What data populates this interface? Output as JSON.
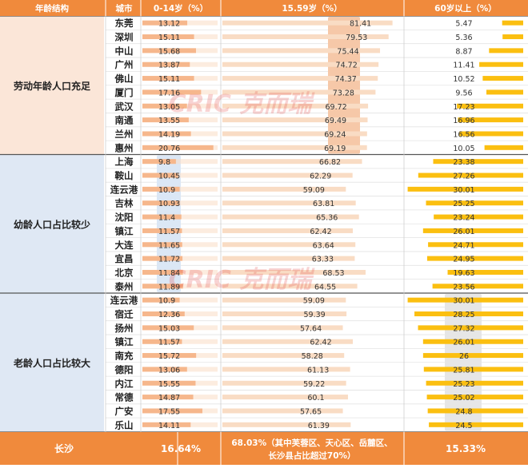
{
  "headers": {
    "structure": "年龄结构",
    "city": "城市",
    "col_child": "0-14岁（%）",
    "col_work": "15.59岁（%）",
    "col_old": "60岁以上（%）"
  },
  "groups": [
    {
      "label": "劳动年龄人口充足",
      "bg": "#fbe6d8"
    },
    {
      "label": "幼龄人口占比较少",
      "bg": "#dfe8f4"
    },
    {
      "label": "老龄人口占比较大",
      "bg": "#dfe8f4"
    }
  ],
  "watermark": "CRIC 克而瑞",
  "chart_data": {
    "type": "bar",
    "title": "",
    "series": [
      {
        "name": "0-14岁（%）",
        "key": "child"
      },
      {
        "name": "15.59岁（%）",
        "key": "work"
      },
      {
        "name": "60岁以上（%）",
        "key": "old"
      }
    ],
    "rows": [
      {
        "group": 0,
        "city": "东莞",
        "child": 13.12,
        "work": 81.41,
        "old": 5.47
      },
      {
        "group": 0,
        "city": "深圳",
        "child": 15.11,
        "work": 79.53,
        "old": 5.36
      },
      {
        "group": 0,
        "city": "中山",
        "child": 15.68,
        "work": 75.44,
        "old": 8.87
      },
      {
        "group": 0,
        "city": "广州",
        "child": 13.87,
        "work": 74.72,
        "old": 11.41
      },
      {
        "group": 0,
        "city": "佛山",
        "child": 15.11,
        "work": 74.37,
        "old": 10.52
      },
      {
        "group": 0,
        "city": "厦门",
        "child": 17.16,
        "work": 73.28,
        "old": 9.56
      },
      {
        "group": 0,
        "city": "武汉",
        "child": 13.05,
        "work": 69.72,
        "old": 17.23
      },
      {
        "group": 0,
        "city": "南通",
        "child": 13.55,
        "work": 69.49,
        "old": 16.96
      },
      {
        "group": 0,
        "city": "兰州",
        "child": 14.19,
        "work": 69.24,
        "old": 16.56
      },
      {
        "group": 0,
        "city": "惠州",
        "child": 20.76,
        "work": 69.19,
        "old": 10.05
      },
      {
        "group": 1,
        "city": "上海",
        "child": 9.8,
        "work": 66.82,
        "old": 23.38
      },
      {
        "group": 1,
        "city": "鞍山",
        "child": 10.45,
        "work": 62.29,
        "old": 27.26
      },
      {
        "group": 1,
        "city": "连云港",
        "child": 10.9,
        "work": 59.09,
        "old": 30.01
      },
      {
        "group": 1,
        "city": "吉林",
        "child": 10.93,
        "work": 63.81,
        "old": 25.25
      },
      {
        "group": 1,
        "city": "沈阳",
        "child": 11.4,
        "work": 65.36,
        "old": 23.24
      },
      {
        "group": 1,
        "city": "镇江",
        "child": 11.57,
        "work": 62.42,
        "old": 26.01
      },
      {
        "group": 1,
        "city": "大连",
        "child": 11.65,
        "work": 63.64,
        "old": 24.71
      },
      {
        "group": 1,
        "city": "宜昌",
        "child": 11.72,
        "work": 63.33,
        "old": 24.95
      },
      {
        "group": 1,
        "city": "北京",
        "child": 11.84,
        "work": 68.53,
        "old": 19.63
      },
      {
        "group": 1,
        "city": "泰州",
        "child": 11.89,
        "work": 64.55,
        "old": 23.56
      },
      {
        "group": 2,
        "city": "连云港",
        "child": 10.9,
        "work": 59.09,
        "old": 30.01
      },
      {
        "group": 2,
        "city": "宿迁",
        "child": 12.36,
        "work": 59.39,
        "old": 28.25
      },
      {
        "group": 2,
        "city": "扬州",
        "child": 15.03,
        "work": 57.64,
        "old": 27.32
      },
      {
        "group": 2,
        "city": "镇江",
        "child": 11.57,
        "work": 62.42,
        "old": 26.01
      },
      {
        "group": 2,
        "city": "南充",
        "child": 15.72,
        "work": 58.28,
        "old": 26
      },
      {
        "group": 2,
        "city": "德阳",
        "child": 13.06,
        "work": 61.13,
        "old": 25.81
      },
      {
        "group": 2,
        "city": "内江",
        "child": 15.55,
        "work": 59.22,
        "old": 25.23
      },
      {
        "group": 2,
        "city": "常德",
        "child": 14.87,
        "work": 60.1,
        "old": 25.02
      },
      {
        "group": 2,
        "city": "广安",
        "child": 17.55,
        "work": 57.65,
        "old": 24.8
      },
      {
        "group": 2,
        "city": "乐山",
        "child": 14.11,
        "work": 61.39,
        "old": 24.5
      }
    ],
    "highlight_column_by_group": [
      "work",
      "child",
      "old"
    ],
    "footer": {
      "city": "长沙",
      "child": "16.64%",
      "work_line1": "68.03%（其中芙蓉区、天心区、岳麓区、",
      "work_line2": "长沙县占比超过70%）",
      "old": "15.33%"
    },
    "colors": {
      "header_bg": "#f08a3c",
      "header_text": "#ffffff",
      "footer_bg": "#f08a3c",
      "footer_text": "#ffffff",
      "bar_light": "#f9dcc4",
      "bar_child": "#f6b78c",
      "bar_work": "#f6b78c",
      "bar_old": "#fbbf10",
      "hl_child": "#dbe7f5",
      "hl_work": "#f6c8a8",
      "hl_old": "#e6e6e6",
      "grid": "#e3e3e3"
    }
  }
}
